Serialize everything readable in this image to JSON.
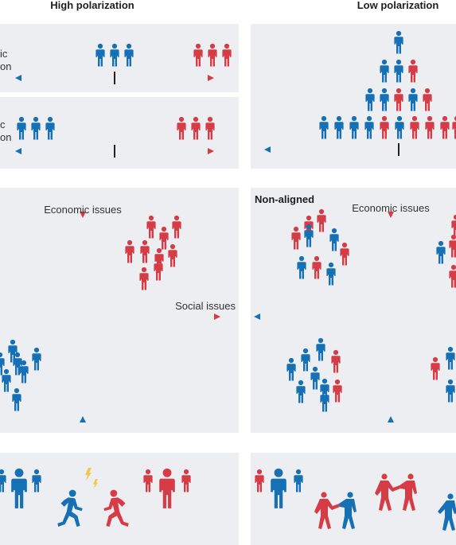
{
  "headers": {
    "left": "High polarization",
    "right": "Low polarization"
  },
  "row1": {
    "top_label_partial": [
      "ic",
      "on"
    ],
    "bottom_label_partial": [
      "c",
      "on"
    ]
  },
  "row2": {
    "left": {
      "y_axis_label": "Economic issues",
      "x_axis_label": "Social issues"
    },
    "right": {
      "title": "Non-aligned",
      "y_axis_label": "Economic issues"
    }
  },
  "colors": {
    "blue": "#1570b5",
    "red": "#d63c46",
    "panel": "#edeef1",
    "spark": "#f2c84b"
  }
}
